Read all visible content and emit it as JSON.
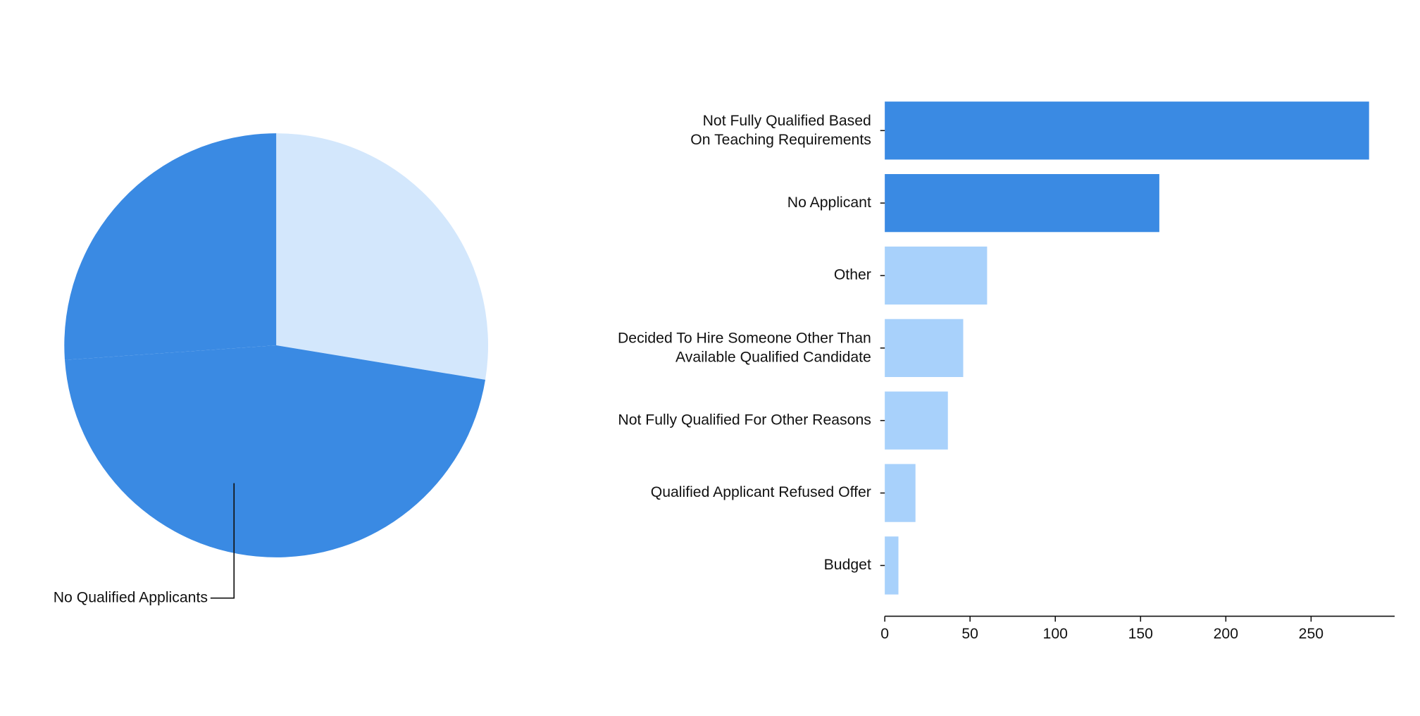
{
  "chart_data": [
    {
      "type": "pie",
      "categories": [
        null,
        "No Qualified Applicants",
        null
      ],
      "values": [
        27.6,
        46.3,
        26.1
      ],
      "colors": [
        "#d3e7fc",
        "#3a8ae3",
        "#3a8ae3"
      ]
    },
    {
      "type": "hbar",
      "categories": [
        "Not Fully Qualified Based\nOn Teaching Requirements",
        "No Applicant",
        "Other",
        "Decided To Hire Someone Other Than\nAvailable Qualified Candidate",
        "Not Fully Qualified For Other Reasons",
        "Qualified Applicant Refused Offer",
        "Budget"
      ],
      "values": [
        284,
        161,
        60,
        46,
        37,
        18,
        8
      ],
      "colors": [
        "#3a8ae3",
        "#3a8ae3",
        "#a8d1fb",
        "#a8d1fb",
        "#a8d1fb",
        "#a8d1fb",
        "#a8d1fb"
      ],
      "xlim": [
        0,
        299
      ],
      "xticks": [
        0,
        50,
        100,
        150,
        200,
        250
      ]
    }
  ]
}
